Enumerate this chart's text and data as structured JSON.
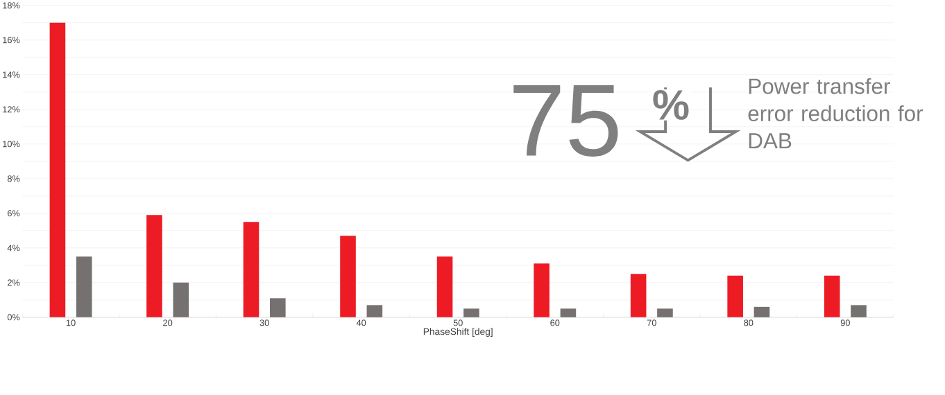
{
  "chart_data": {
    "type": "bar",
    "xlabel": "PhaseShift [deg]",
    "categories": [
      "10",
      "20",
      "30",
      "40",
      "50",
      "60",
      "70",
      "80",
      "90"
    ],
    "series": [
      {
        "color": "#ed1c24",
        "values": [
          17,
          5.9,
          5.5,
          4.7,
          3.5,
          3.1,
          2.5,
          2.4,
          2.4
        ]
      },
      {
        "color": "#767171",
        "values": [
          3.5,
          2.0,
          1.1,
          0.7,
          0.5,
          0.5,
          0.5,
          0.6,
          0.7
        ]
      }
    ],
    "ylim": [
      0,
      18
    ],
    "yticks": [
      {
        "value": 0,
        "label": "0%"
      },
      {
        "value": 1,
        "label": null
      },
      {
        "value": 2,
        "label": "2%"
      },
      {
        "value": 3,
        "label": null
      },
      {
        "value": 4,
        "label": "4%"
      },
      {
        "value": 5,
        "label": null
      },
      {
        "value": 6,
        "label": "6%"
      },
      {
        "value": 7,
        "label": null
      },
      {
        "value": 8,
        "label": "8%"
      },
      {
        "value": 9,
        "label": null
      },
      {
        "value": 10,
        "label": "10%"
      },
      {
        "value": 11,
        "label": null
      },
      {
        "value": 12,
        "label": "12%"
      },
      {
        "value": 13,
        "label": null
      },
      {
        "value": 14,
        "label": "14%"
      },
      {
        "value": 15,
        "label": null
      },
      {
        "value": 16,
        "label": "16%"
      },
      {
        "value": 17,
        "label": null
      },
      {
        "value": 18,
        "label": "18%"
      }
    ],
    "grid": "y",
    "annotations": [
      "75",
      "%",
      "Power transfer error reduction for DAB"
    ]
  }
}
